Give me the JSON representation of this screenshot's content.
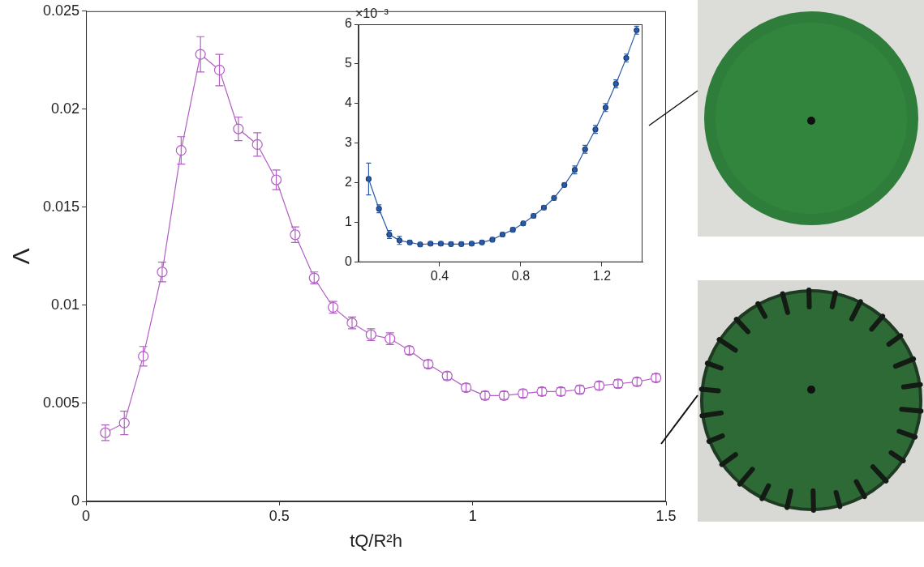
{
  "chart_data": [
    {
      "type": "line",
      "x_label": "tQ/R²h",
      "y_label": "Λ",
      "x": [
        0.05,
        0.099,
        0.148,
        0.197,
        0.246,
        0.296,
        0.345,
        0.394,
        0.443,
        0.492,
        0.541,
        0.59,
        0.639,
        0.688,
        0.737,
        0.786,
        0.836,
        0.885,
        0.934,
        0.983,
        1.032,
        1.081,
        1.13,
        1.179,
        1.228,
        1.277,
        1.327,
        1.376,
        1.425,
        1.474
      ],
      "values": [
        0.0035,
        0.004,
        0.0074,
        0.0117,
        0.0179,
        0.0228,
        0.022,
        0.019,
        0.0182,
        0.0164,
        0.0136,
        0.0114,
        0.0099,
        0.0091,
        0.0085,
        0.0083,
        0.0077,
        0.007,
        0.0064,
        0.0058,
        0.0054,
        0.0054,
        0.0055,
        0.0056,
        0.0056,
        0.0057,
        0.0059,
        0.006,
        0.0061,
        0.0063
      ],
      "errors": [
        0.0004,
        0.0006,
        0.0005,
        0.0005,
        0.0007,
        0.0009,
        0.0008,
        0.0006,
        0.0006,
        0.0005,
        0.0004,
        0.0003,
        0.0003,
        0.0003,
        0.0003,
        0.0003,
        0.0002,
        0.0002,
        0.0002,
        0.0002,
        0.0002,
        0.0002,
        0.0002,
        0.0002,
        0.0002,
        0.0002,
        0.0002,
        0.0002,
        0.0002,
        0.0002
      ],
      "color": "#b25ec4",
      "marker": "open circle",
      "line_style": "solid",
      "xlim": [
        0,
        1.5
      ],
      "xticks": [
        0,
        0.5,
        1,
        1.5
      ],
      "ylim": [
        0,
        0.025
      ],
      "yticks": [
        0,
        0.005,
        0.01,
        0.015,
        0.02,
        0.025
      ],
      "grid": false
    },
    {
      "type": "line",
      "annotations": [
        "×10⁻³"
      ],
      "x": [
        0.05,
        0.101,
        0.152,
        0.202,
        0.253,
        0.304,
        0.355,
        0.406,
        0.456,
        0.507,
        0.558,
        0.609,
        0.66,
        0.71,
        0.761,
        0.812,
        0.863,
        0.914,
        0.964,
        1.015,
        1.066,
        1.117,
        1.168,
        1.218,
        1.269,
        1.32,
        1.371
      ],
      "values": [
        0.0021,
        0.00135,
        0.0007,
        0.00055,
        0.0005,
        0.00045,
        0.00047,
        0.00047,
        0.00046,
        0.00046,
        0.00047,
        0.0005,
        0.00057,
        0.0007,
        0.00082,
        0.00098,
        0.00117,
        0.00138,
        0.00162,
        0.00195,
        0.00233,
        0.00285,
        0.00335,
        0.0039,
        0.0045,
        0.00515,
        0.00585
      ],
      "errors": [
        0.0004,
        0.0001,
        0.0001,
        0.0001,
        5e-05,
        5e-05,
        5e-05,
        5e-05,
        5e-05,
        5e-05,
        5e-05,
        5e-05,
        5e-05,
        5e-05,
        5e-05,
        5e-05,
        5e-05,
        5e-05,
        5e-05,
        5e-05,
        0.0001,
        0.0001,
        0.0001,
        0.0001,
        0.0001,
        0.0001,
        0.0001
      ],
      "color": "#2b5ba6",
      "marker": "filled circle",
      "line_style": "solid",
      "xlim": [
        0,
        1.4
      ],
      "xticks": [
        0.4,
        0.8,
        1.2
      ],
      "ylim": [
        0,
        0.006
      ],
      "yticks": [
        {
          "value": 0,
          "label": "0"
        },
        {
          "value": 0.001,
          "label": "1"
        },
        {
          "value": 0.002,
          "label": "2"
        },
        {
          "value": 0.003,
          "label": "3"
        },
        {
          "value": 0.004,
          "label": "4"
        },
        {
          "value": 0.005,
          "label": "5"
        },
        {
          "value": 0.006,
          "label": "6"
        }
      ],
      "grid": false
    }
  ]
}
